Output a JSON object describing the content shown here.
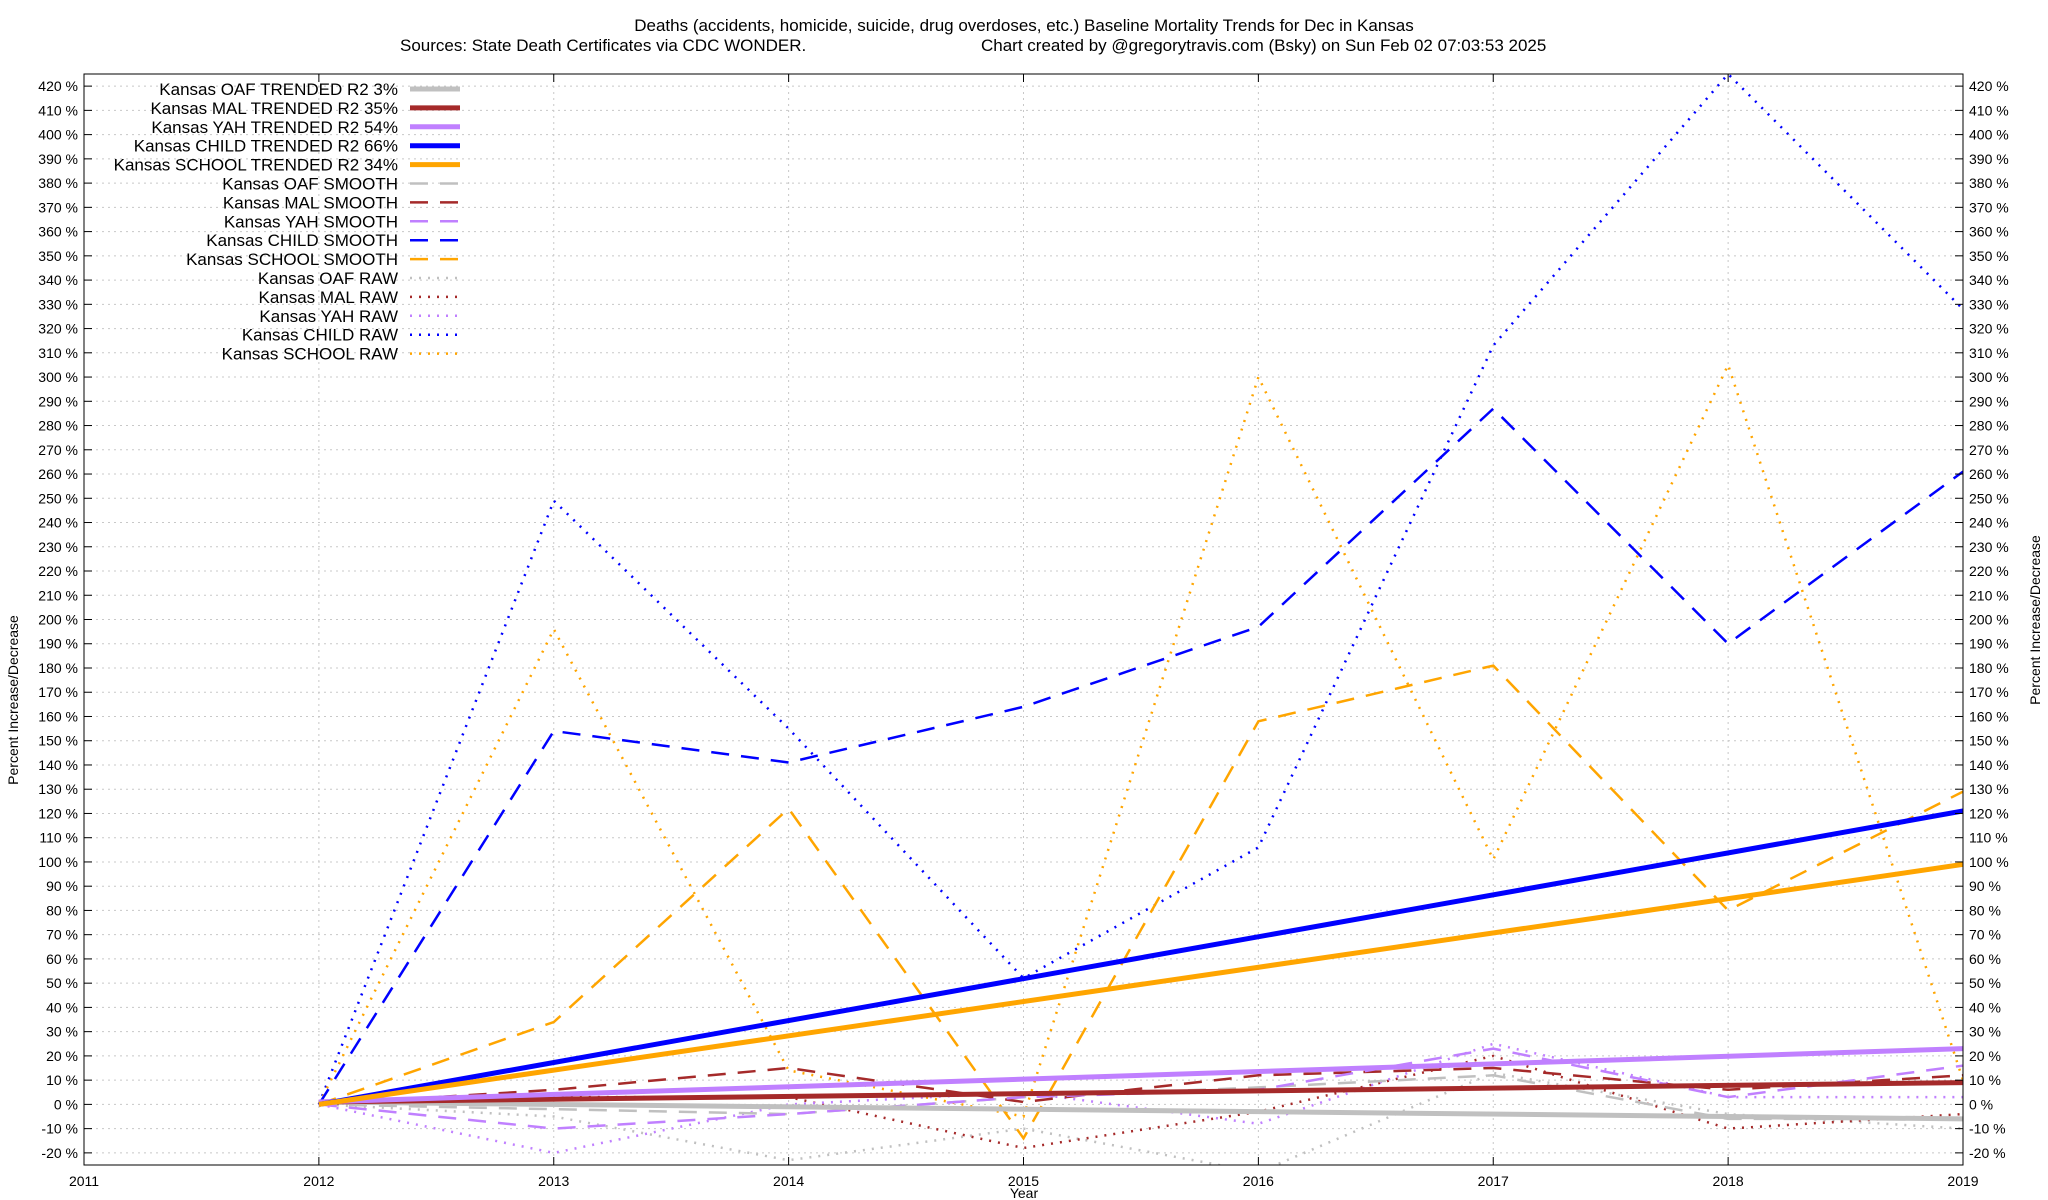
{
  "chart_data": {
    "type": "line",
    "title": "Deaths (accidents, homicide, suicide, drug overdoses, etc.)  Baseline Mortality Trends for Dec in Kansas",
    "subtitle_left": "Sources: State Death Certificates via CDC WONDER.",
    "subtitle_right": "Chart created by @gregorytravis.com (Bsky) on Sun Feb 02 07:03:53 2025",
    "xlabel": "Year",
    "ylabel": "Percent Increase/Decrease",
    "ylabel_right": "Percent Increase/Decrease",
    "xlim": [
      2011,
      2019
    ],
    "ylim": [
      -25,
      425
    ],
    "x_ticks": [
      2011,
      2012,
      2013,
      2014,
      2015,
      2016,
      2017,
      2018,
      2019
    ],
    "y_ticks": [
      -20,
      -10,
      0,
      10,
      20,
      30,
      40,
      50,
      60,
      70,
      80,
      90,
      100,
      110,
      120,
      130,
      140,
      150,
      160,
      170,
      180,
      190,
      200,
      210,
      220,
      230,
      240,
      250,
      260,
      270,
      280,
      290,
      300,
      310,
      320,
      330,
      340,
      350,
      360,
      370,
      380,
      390,
      400,
      410,
      420
    ],
    "y_tick_suffix": " %",
    "grid": true,
    "legend_position": "top-left",
    "colors": {
      "OAF": "#c0c0c0",
      "MAL": "#a52a2a",
      "YAH": "#c080ff",
      "CHILD": "#0000ff",
      "SCHOOL": "#ffa500"
    },
    "series": [
      {
        "name": "Kansas OAF TRENDED R2  3%",
        "group": "OAF",
        "style": "trend",
        "x": [
          2012,
          2019
        ],
        "values": [
          1,
          -6
        ]
      },
      {
        "name": "Kansas MAL TRENDED R2  35%",
        "group": "MAL",
        "style": "trend",
        "x": [
          2012,
          2019
        ],
        "values": [
          1,
          9
        ]
      },
      {
        "name": "Kansas YAH TRENDED R2  54%",
        "group": "YAH",
        "style": "trend",
        "x": [
          2012,
          2019
        ],
        "values": [
          1,
          23
        ]
      },
      {
        "name": "Kansas CHILD TRENDED R2  66%",
        "group": "CHILD",
        "style": "trend",
        "x": [
          2012,
          2019
        ],
        "values": [
          0,
          121
        ]
      },
      {
        "name": "Kansas SCHOOL TRENDED R2  34%",
        "group": "SCHOOL",
        "style": "trend",
        "x": [
          2012,
          2019
        ],
        "values": [
          0,
          99
        ]
      },
      {
        "name": "Kansas OAF SMOOTH",
        "group": "OAF",
        "style": "smooth",
        "x": [
          2012,
          2013,
          2014,
          2015,
          2016,
          2017,
          2018,
          2019
        ],
        "values": [
          0,
          -2,
          -4,
          3,
          7,
          12,
          -6,
          -6
        ]
      },
      {
        "name": "Kansas MAL SMOOTH",
        "group": "MAL",
        "style": "smooth",
        "x": [
          2012,
          2013,
          2014,
          2015,
          2016,
          2017,
          2018,
          2019
        ],
        "values": [
          0,
          6,
          15,
          1,
          12,
          15,
          6,
          12
        ]
      },
      {
        "name": "Kansas YAH SMOOTH",
        "group": "YAH",
        "style": "smooth",
        "x": [
          2012,
          2013,
          2014,
          2015,
          2016,
          2017,
          2018,
          2019
        ],
        "values": [
          0,
          -10,
          -4,
          3,
          6,
          23,
          3,
          16
        ]
      },
      {
        "name": "Kansas CHILD SMOOTH",
        "group": "CHILD",
        "style": "smooth",
        "x": [
          2012,
          2013,
          2014,
          2015,
          2016,
          2017,
          2018,
          2019
        ],
        "values": [
          0,
          154,
          141,
          164,
          197,
          287,
          190,
          261
        ]
      },
      {
        "name": "Kansas SCHOOL SMOOTH",
        "group": "SCHOOL",
        "style": "smooth",
        "x": [
          2012,
          2013,
          2014,
          2015,
          2016,
          2017,
          2018,
          2019
        ],
        "values": [
          0,
          34,
          122,
          -14,
          158,
          181,
          80,
          129
        ]
      },
      {
        "name": "Kansas OAF RAW",
        "group": "OAF",
        "style": "raw",
        "x": [
          2012,
          2013,
          2014,
          2015,
          2016,
          2017,
          2018,
          2019
        ],
        "values": [
          0,
          -5,
          -23,
          -10,
          -28,
          13,
          -4,
          -10
        ]
      },
      {
        "name": "Kansas MAL RAW",
        "group": "MAL",
        "style": "raw",
        "x": [
          2012,
          2013,
          2014,
          2015,
          2016,
          2017,
          2018,
          2019
        ],
        "values": [
          0,
          3,
          3,
          -18,
          -3,
          20,
          -10,
          -4
        ]
      },
      {
        "name": "Kansas YAH RAW",
        "group": "YAH",
        "style": "raw",
        "x": [
          2012,
          2013,
          2014,
          2015,
          2016,
          2017,
          2018,
          2019
        ],
        "values": [
          0,
          -20,
          0,
          5,
          -8,
          25,
          3,
          3
        ]
      },
      {
        "name": "Kansas CHILD RAW",
        "group": "CHILD",
        "style": "raw",
        "x": [
          2012,
          2013,
          2014,
          2015,
          2016,
          2017,
          2018,
          2019
        ],
        "values": [
          0,
          249,
          155,
          52,
          106,
          313,
          425,
          328
        ]
      },
      {
        "name": "Kansas SCHOOL RAW",
        "group": "SCHOOL",
        "style": "raw",
        "x": [
          2012,
          2013,
          2014,
          2015,
          2016,
          2017,
          2018,
          2019
        ],
        "values": [
          0,
          196,
          14,
          -5,
          300,
          101,
          305,
          10
        ]
      }
    ]
  }
}
